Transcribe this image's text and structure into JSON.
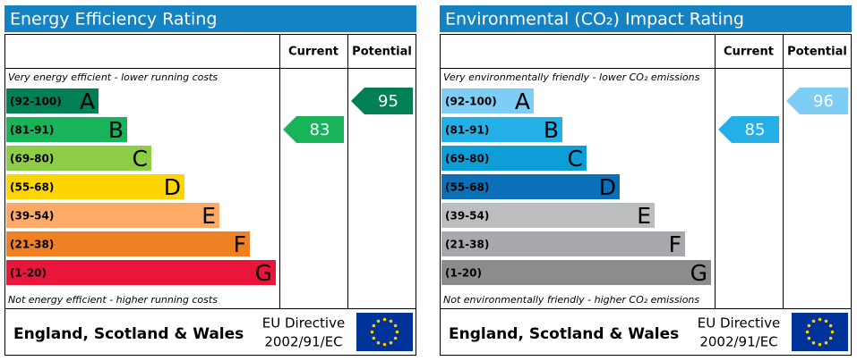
{
  "chart_data": [
    {
      "type": "rating",
      "title": "Energy Efficiency Rating",
      "columns": [
        "Current",
        "Potential"
      ],
      "top_note": "Very energy efficient - lower running costs",
      "bottom_note": "Not energy efficient - higher running costs",
      "bands": [
        {
          "range": "(92-100)",
          "letter": "A",
          "color": "#008054"
        },
        {
          "range": "(81-91)",
          "letter": "B",
          "color": "#19b459"
        },
        {
          "range": "(69-80)",
          "letter": "C",
          "color": "#8dce46"
        },
        {
          "range": "(55-68)",
          "letter": "D",
          "color": "#ffd500"
        },
        {
          "range": "(39-54)",
          "letter": "E",
          "color": "#fcaa65"
        },
        {
          "range": "(21-38)",
          "letter": "F",
          "color": "#ef8023"
        },
        {
          "range": "(1-20)",
          "letter": "G",
          "color": "#e9153b"
        }
      ],
      "current": 83,
      "potential": 95,
      "footer": "England, Scotland & Wales",
      "directive": [
        "EU Directive",
        "2002/91/EC"
      ]
    },
    {
      "type": "rating",
      "title": "Environmental (CO₂) Impact Rating",
      "columns": [
        "Current",
        "Potential"
      ],
      "top_note": "Very environmentally friendly - lower CO₂ emissions",
      "bottom_note": "Not environmentally friendly - higher CO₂ emissions",
      "bands": [
        {
          "range": "(92-100)",
          "letter": "A",
          "color": "#7dcdf5"
        },
        {
          "range": "(81-91)",
          "letter": "B",
          "color": "#22b0e6"
        },
        {
          "range": "(69-80)",
          "letter": "C",
          "color": "#0d9ed8"
        },
        {
          "range": "(55-68)",
          "letter": "D",
          "color": "#0b70b8"
        },
        {
          "range": "(39-54)",
          "letter": "E",
          "color": "#bbbdbf"
        },
        {
          "range": "(21-38)",
          "letter": "F",
          "color": "#a7a9ac"
        },
        {
          "range": "(1-20)",
          "letter": "G",
          "color": "#8a8c8e"
        }
      ],
      "current": 85,
      "potential": 96,
      "footer": "England, Scotland & Wales",
      "directive": [
        "EU Directive",
        "2002/91/EC"
      ]
    }
  ]
}
